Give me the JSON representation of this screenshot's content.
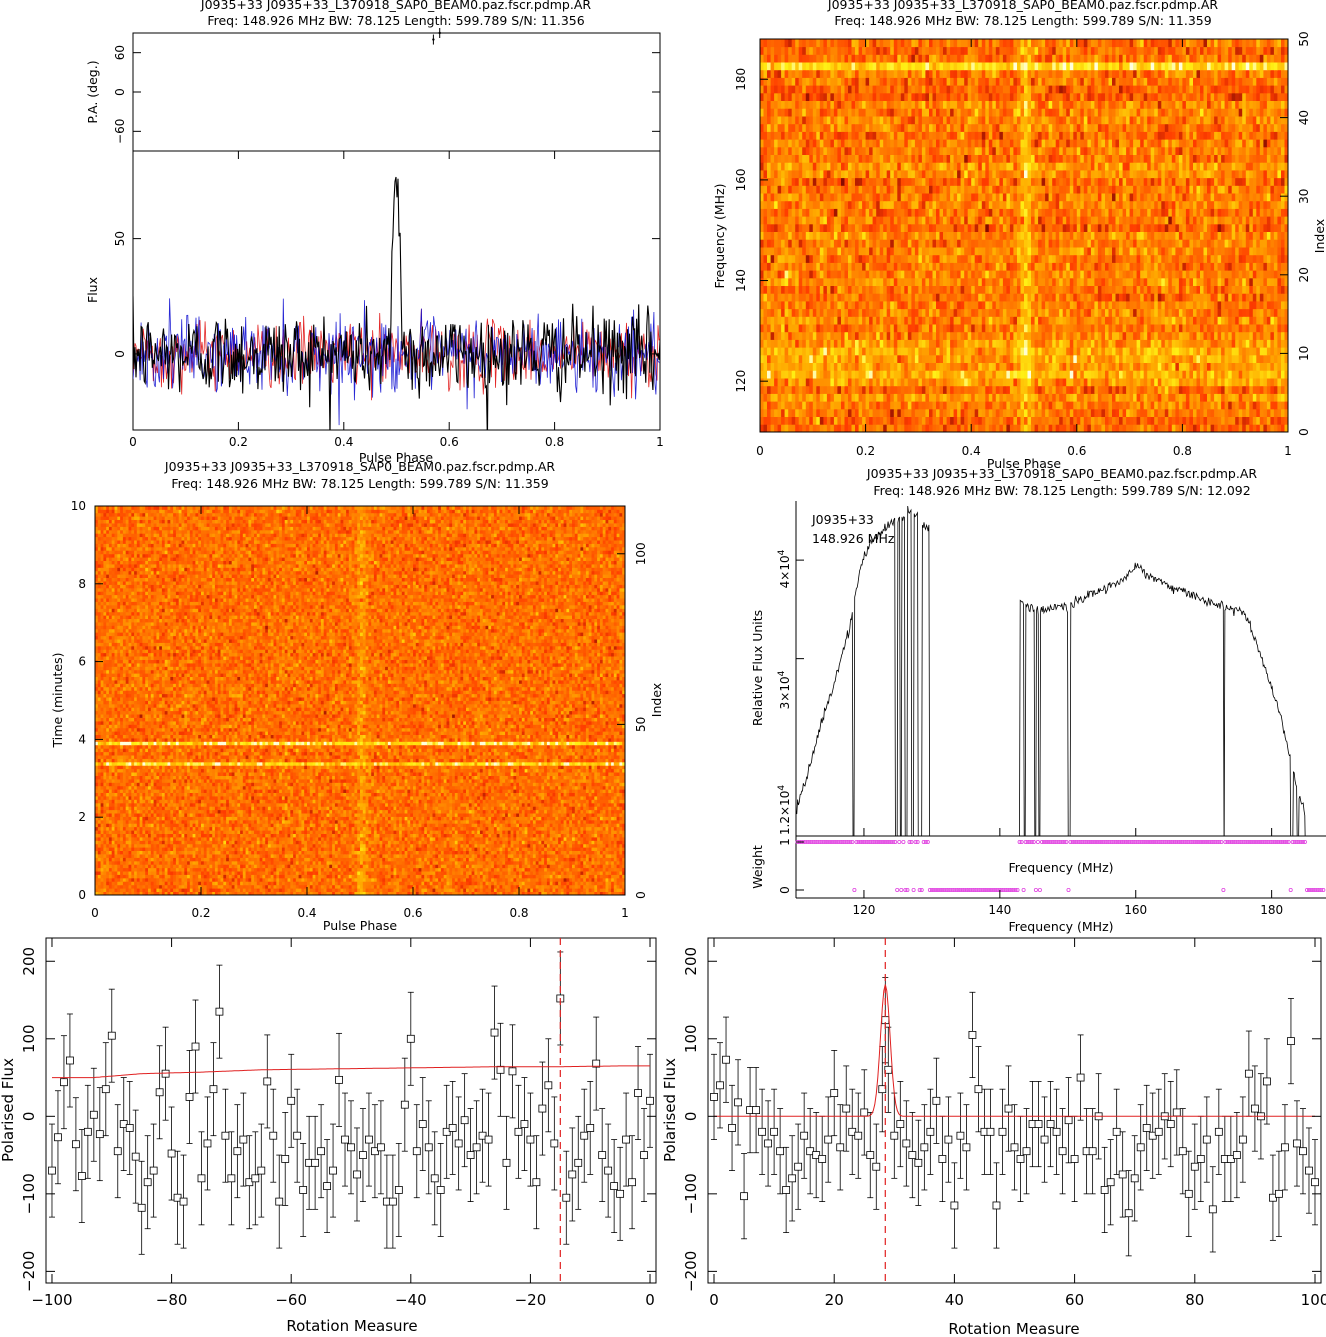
{
  "chart_data": [
    {
      "id": "profile",
      "type": "line",
      "title": [
        "J0935+33 J0935+33_L370918_SAP0_BEAM0.paz.fscr.pdmp.AR",
        "Freq: 148.926 MHz BW: 78.125 Length: 599.789 S/N: 11.356"
      ],
      "pa_panel": {
        "ylabel": "P.A. (deg.)",
        "ylim": [
          -90,
          90
        ],
        "yticks": [
          -60,
          0,
          60
        ],
        "points": [
          {
            "x": 0.57,
            "y": 80
          },
          {
            "x": 0.582,
            "y": 90
          }
        ]
      },
      "flux_panel": {
        "ylabel": "Flux",
        "xlabel": "Pulse Phase",
        "xlim": [
          0,
          1
        ],
        "ylim": [
          -33,
          88
        ],
        "yticks": [
          0,
          50
        ],
        "xticks": [
          0,
          0.2,
          0.4,
          0.6,
          0.8,
          1
        ],
        "series": [
          {
            "name": "Total intensity",
            "color": "#000000",
            "noise": 9,
            "peak": {
              "center": 0.5,
              "width": 0.006,
              "height": 78
            }
          },
          {
            "name": "Linear polarisation",
            "color": "#e01010",
            "noise": 7
          },
          {
            "name": "Circular polarisation",
            "color": "#1010d0",
            "noise": 8
          }
        ]
      }
    },
    {
      "id": "freq_phase",
      "type": "heatmap",
      "title": [
        "J0935+33 J0935+33_L370918_SAP0_BEAM0.paz.fscr.pdmp.AR",
        "Freq: 148.926 MHz BW: 78.125 Length: 599.789 S/N: 11.359"
      ],
      "xlabel": "Pulse Phase",
      "ylabel": "Frequency (MHz)",
      "y2label": "Index",
      "xlim": [
        0,
        1
      ],
      "ylim": [
        109.9,
        188
      ],
      "y2lim": [
        0,
        50
      ],
      "xticks": [
        0,
        0.2,
        0.4,
        0.6,
        0.8,
        1
      ],
      "yticks": [
        120,
        140,
        160,
        180
      ],
      "y2ticks": [
        0,
        10,
        20,
        30,
        40,
        50
      ],
      "pulse_phase": 0.5,
      "bright_channel_index": 47,
      "colormap": "heat"
    },
    {
      "id": "time_phase",
      "type": "heatmap",
      "title": [
        "J0935+33 J0935+33_L370918_SAP0_BEAM0.paz.fscr.pdmp.AR",
        "Freq: 148.926 MHz BW: 78.125 Length: 599.789 S/N: 11.359"
      ],
      "xlabel": "Pulse Phase",
      "ylabel": "Time (minutes)",
      "y2label": "Index",
      "xlim": [
        0,
        1
      ],
      "ylim": [
        0,
        10
      ],
      "y2lim": [
        0,
        114
      ],
      "xticks": [
        0,
        0.2,
        0.4,
        0.6,
        0.8,
        1
      ],
      "yticks": [
        0,
        2,
        4,
        6,
        8,
        10
      ],
      "y2ticks": [
        0,
        50,
        100
      ],
      "pulse_phase": 0.5,
      "bright_subints_minutes": [
        3.87,
        3.3
      ],
      "colormap": "heat"
    },
    {
      "id": "bandpass",
      "type": "line",
      "title": [
        "J0935+33 J0935+33_L370918_SAP0_BEAM0.paz.fscr.pdmp.AR",
        "Freq: 148.926 MHz BW: 78.125 Length: 599.789 S/N: 12.092"
      ],
      "annotation": [
        "J0935+33",
        "148.926 MHz"
      ],
      "xlabel": "Frequency (MHz)",
      "ylabel": "Relative Flux Units",
      "weight_label": "Weight",
      "weight_xlabel": "Frequency (MHz)",
      "xlim": [
        110,
        188
      ],
      "xticks": [
        120,
        140,
        160,
        180
      ],
      "ytick_labels": [
        "1.2×10^4",
        "3×10^4",
        "4×10^4"
      ],
      "ylim": [
        12000,
        46000
      ],
      "shape": [
        [
          110,
          14500
        ],
        [
          112,
          19000
        ],
        [
          114,
          24000
        ],
        [
          116,
          28500
        ],
        [
          118,
          33500
        ],
        [
          119,
          37500
        ],
        [
          120,
          40500
        ],
        [
          121,
          41800
        ],
        [
          122,
          42300
        ],
        [
          123,
          43000
        ],
        [
          124,
          43800
        ],
        [
          125,
          44000
        ],
        [
          126,
          44500
        ],
        [
          127,
          44800
        ],
        [
          128,
          44700
        ],
        [
          129,
          43500
        ],
        [
          130,
          43000
        ],
        [
          131,
          37000
        ],
        [
          143,
          35700
        ],
        [
          145,
          35000
        ],
        [
          147,
          35000
        ],
        [
          149,
          35200
        ],
        [
          150,
          35200
        ],
        [
          152,
          36000
        ],
        [
          155,
          37000
        ],
        [
          157,
          37700
        ],
        [
          159,
          38500
        ],
        [
          160,
          39500
        ],
        [
          161,
          39000
        ],
        [
          163,
          38000
        ],
        [
          165,
          37300
        ],
        [
          167,
          36800
        ],
        [
          169,
          36200
        ],
        [
          171,
          35700
        ],
        [
          173,
          35200
        ],
        [
          175,
          35000
        ],
        [
          176,
          34400
        ],
        [
          177,
          33000
        ],
        [
          178,
          31000
        ],
        [
          179,
          29000
        ],
        [
          180,
          27000
        ],
        [
          181,
          25000
        ],
        [
          182,
          22000
        ],
        [
          183,
          19000
        ],
        [
          184,
          16000
        ],
        [
          185,
          14000
        ],
        [
          186,
          13000
        ],
        [
          188,
          12500
        ]
      ],
      "zero_channels_mhz": [
        [
          118.4,
          118.6
        ],
        [
          124.6,
          124.9
        ],
        [
          125.3,
          125.6
        ],
        [
          126.0,
          126.4
        ],
        [
          127.0,
          127.3
        ],
        [
          128.0,
          128.5
        ],
        [
          129.6,
          142.9
        ],
        [
          143.5,
          143.8
        ],
        [
          145.1,
          145.4
        ],
        [
          145.7,
          146.0
        ],
        [
          150.0,
          150.4
        ],
        [
          172.9,
          173.1
        ],
        [
          182.8,
          183.1
        ],
        [
          183.8,
          184.0
        ],
        [
          185.0,
          188
        ]
      ],
      "weight_marker_color": "#e040e0"
    },
    {
      "id": "rm_left",
      "type": "scatter",
      "xlabel": "Rotation Measure",
      "ylabel": "Polarised Flux",
      "xlim": [
        -101,
        1
      ],
      "ylim": [
        -215,
        230
      ],
      "xticks": [
        -100,
        -80,
        -60,
        -40,
        -20,
        0
      ],
      "yticks": [
        -200,
        -100,
        0,
        100,
        200
      ],
      "best_rm": -15,
      "fit": [
        [
          -100,
          50
        ],
        [
          -93,
          50
        ],
        [
          -85,
          55
        ],
        [
          -75,
          57
        ],
        [
          -65,
          60
        ],
        [
          -55,
          61
        ],
        [
          -45,
          62
        ],
        [
          -35,
          63
        ],
        [
          -25,
          64
        ],
        [
          -15,
          64
        ],
        [
          -5,
          65
        ],
        [
          0,
          65
        ]
      ],
      "errorbar": 60,
      "points": [
        [
          -100,
          -70
        ],
        [
          -99,
          -27
        ],
        [
          -98,
          44
        ],
        [
          -97,
          72
        ],
        [
          -96,
          -36
        ],
        [
          -95,
          -77
        ],
        [
          -94,
          -20
        ],
        [
          -93,
          2
        ],
        [
          -92,
          -23
        ],
        [
          -91,
          35
        ],
        [
          -90,
          104
        ],
        [
          -89,
          -45
        ],
        [
          -88,
          -10
        ],
        [
          -87,
          -15
        ],
        [
          -86,
          -52
        ],
        [
          -85,
          -118
        ],
        [
          -84,
          -85
        ],
        [
          -83,
          -70
        ],
        [
          -82,
          31
        ],
        [
          -81,
          55
        ],
        [
          -80,
          -48
        ],
        [
          -79,
          -105
        ],
        [
          -78,
          -110
        ],
        [
          -77,
          25
        ],
        [
          -76,
          90
        ],
        [
          -75,
          -80
        ],
        [
          -74,
          -35
        ],
        [
          -73,
          35
        ],
        [
          -72,
          135
        ],
        [
          -71,
          -25
        ],
        [
          -70,
          -80
        ],
        [
          -69,
          -45
        ],
        [
          -68,
          -30
        ],
        [
          -67,
          -85
        ],
        [
          -66,
          -80
        ],
        [
          -65,
          -70
        ],
        [
          -64,
          45
        ],
        [
          -63,
          -25
        ],
        [
          -62,
          -110
        ],
        [
          -61,
          -55
        ],
        [
          -60,
          20
        ],
        [
          -59,
          -25
        ],
        [
          -58,
          -95
        ],
        [
          -57,
          -60
        ],
        [
          -56,
          -60
        ],
        [
          -55,
          -45
        ],
        [
          -54,
          -90
        ],
        [
          -53,
          -70
        ],
        [
          -52,
          47
        ],
        [
          -51,
          -30
        ],
        [
          -50,
          -40
        ],
        [
          -49,
          -75
        ],
        [
          -48,
          -50
        ],
        [
          -47,
          -30
        ],
        [
          -46,
          -45
        ],
        [
          -45,
          -40
        ],
        [
          -44,
          -110
        ],
        [
          -43,
          -110
        ],
        [
          -42,
          -95
        ],
        [
          -41,
          15
        ],
        [
          -40,
          100
        ],
        [
          -39,
          -45
        ],
        [
          -38,
          -10
        ],
        [
          -37,
          -40
        ],
        [
          -36,
          -80
        ],
        [
          -35,
          -95
        ],
        [
          -34,
          -20
        ],
        [
          -33,
          -15
        ],
        [
          -32,
          -35
        ],
        [
          -31,
          -5
        ],
        [
          -30,
          -50
        ],
        [
          -29,
          -40
        ],
        [
          -28,
          -25
        ],
        [
          -27,
          -30
        ],
        [
          -26,
          108
        ],
        [
          -25,
          60
        ],
        [
          -24,
          -60
        ],
        [
          -23,
          58
        ],
        [
          -22,
          -20
        ],
        [
          -21,
          -10
        ],
        [
          -20,
          -30
        ],
        [
          -19,
          -85
        ],
        [
          -18,
          10
        ],
        [
          -17,
          40
        ],
        [
          -16,
          -35
        ],
        [
          -15,
          152
        ],
        [
          -14,
          -105
        ],
        [
          -13,
          -75
        ],
        [
          -12,
          -60
        ],
        [
          -11,
          -25
        ],
        [
          -10,
          -15
        ],
        [
          -9,
          68
        ],
        [
          -8,
          -50
        ],
        [
          -7,
          -70
        ],
        [
          -6,
          -90
        ],
        [
          -5,
          -100
        ],
        [
          -4,
          -30
        ],
        [
          -3,
          -85
        ],
        [
          -2,
          30
        ],
        [
          -1,
          -50
        ],
        [
          0,
          20
        ]
      ]
    },
    {
      "id": "rm_right",
      "type": "scatter",
      "xlabel": "Rotation Measure",
      "ylabel": "Polarised Flux",
      "xlim": [
        -1,
        101
      ],
      "ylim": [
        -215,
        230
      ],
      "xticks": [
        0,
        20,
        40,
        60,
        80,
        100
      ],
      "yticks": [
        -200,
        -100,
        0,
        100,
        200
      ],
      "best_rm": 28.5,
      "fit_peak": {
        "center": 28.5,
        "width": 0.8,
        "height": 170
      },
      "errorbar": 55,
      "points": [
        [
          0,
          25
        ],
        [
          1,
          40
        ],
        [
          2,
          73
        ],
        [
          3,
          -15
        ],
        [
          4,
          18
        ],
        [
          5,
          -103
        ],
        [
          6,
          8
        ],
        [
          7,
          8
        ],
        [
          8,
          -20
        ],
        [
          9,
          -35
        ],
        [
          10,
          -20
        ],
        [
          11,
          -45
        ],
        [
          12,
          -95
        ],
        [
          13,
          -80
        ],
        [
          14,
          -65
        ],
        [
          15,
          -25
        ],
        [
          16,
          -45
        ],
        [
          17,
          -50
        ],
        [
          18,
          -55
        ],
        [
          19,
          -30
        ],
        [
          20,
          30
        ],
        [
          21,
          -40
        ],
        [
          22,
          10
        ],
        [
          23,
          -20
        ],
        [
          24,
          -25
        ],
        [
          25,
          5
        ],
        [
          26,
          -50
        ],
        [
          27,
          -65
        ],
        [
          28,
          35
        ],
        [
          28.5,
          124
        ],
        [
          29,
          60
        ],
        [
          30,
          -25
        ],
        [
          31,
          -10
        ],
        [
          32,
          -35
        ],
        [
          33,
          -50
        ],
        [
          34,
          -60
        ],
        [
          35,
          -40
        ],
        [
          36,
          -20
        ],
        [
          37,
          20
        ],
        [
          38,
          -55
        ],
        [
          39,
          -30
        ],
        [
          40,
          -115
        ],
        [
          41,
          -25
        ],
        [
          42,
          -40
        ],
        [
          43,
          105
        ],
        [
          44,
          35
        ],
        [
          45,
          -20
        ],
        [
          46,
          -20
        ],
        [
          47,
          -115
        ],
        [
          48,
          -20
        ],
        [
          49,
          10
        ],
        [
          50,
          -40
        ],
        [
          51,
          -55
        ],
        [
          52,
          -45
        ],
        [
          53,
          -10
        ],
        [
          54,
          -10
        ],
        [
          55,
          -30
        ],
        [
          56,
          -10
        ],
        [
          57,
          -20
        ],
        [
          58,
          -45
        ],
        [
          59,
          -5
        ],
        [
          60,
          -55
        ],
        [
          61,
          50
        ],
        [
          62,
          -45
        ],
        [
          63,
          -45
        ],
        [
          64,
          0
        ],
        [
          65,
          -95
        ],
        [
          66,
          -85
        ],
        [
          67,
          -20
        ],
        [
          68,
          -75
        ],
        [
          69,
          -125
        ],
        [
          70,
          -80
        ],
        [
          71,
          -40
        ],
        [
          72,
          -15
        ],
        [
          73,
          -25
        ],
        [
          74,
          -20
        ],
        [
          75,
          0
        ],
        [
          76,
          -10
        ],
        [
          77,
          5
        ],
        [
          78,
          -45
        ],
        [
          79,
          -100
        ],
        [
          80,
          -65
        ],
        [
          81,
          -55
        ],
        [
          82,
          -30
        ],
        [
          83,
          -120
        ],
        [
          84,
          -20
        ],
        [
          85,
          -55
        ],
        [
          86,
          -55
        ],
        [
          87,
          -50
        ],
        [
          88,
          -30
        ],
        [
          89,
          55
        ],
        [
          90,
          10
        ],
        [
          91,
          0
        ],
        [
          92,
          45
        ],
        [
          93,
          -105
        ],
        [
          94,
          -100
        ],
        [
          95,
          -40
        ],
        [
          96,
          97
        ],
        [
          97,
          -35
        ],
        [
          98,
          -45
        ],
        [
          99,
          -70
        ],
        [
          100,
          -85
        ]
      ]
    }
  ]
}
